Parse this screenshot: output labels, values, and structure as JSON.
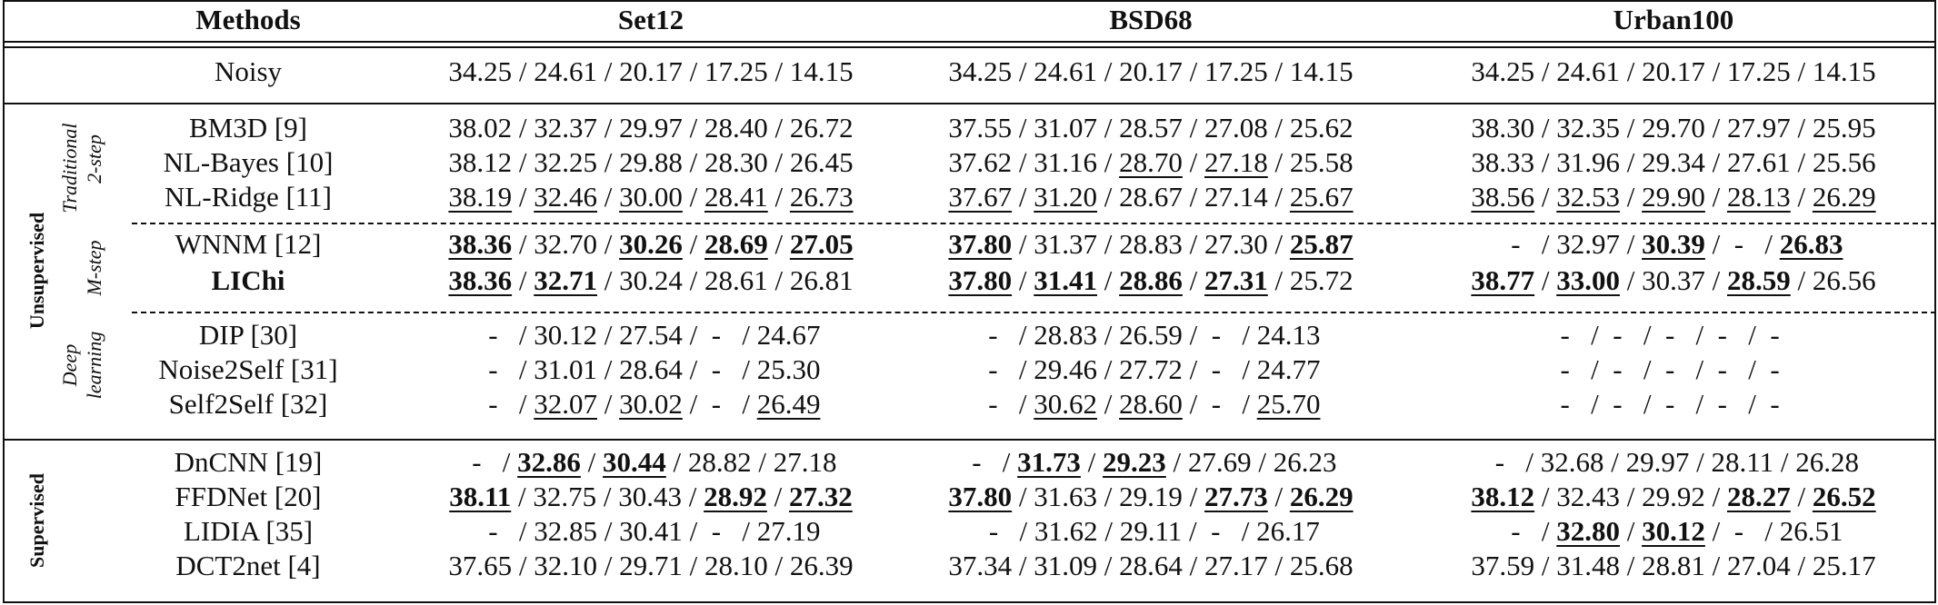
{
  "headers": [
    "Methods",
    "Set12",
    "BSD68",
    "Urban100"
  ],
  "groups": {
    "unsupervised": "Unsupervised",
    "supervised": "Supervised",
    "traditional_2step": [
      "Traditional",
      "2-step"
    ],
    "traditional_mstep": "M-step",
    "deep_learning": [
      "Deep",
      "learning"
    ]
  },
  "rows": [
    {
      "method": "Noisy",
      "bold": false,
      "cells": [
        [
          [
            "34.25",
            ""
          ],
          [
            "24.61",
            ""
          ],
          [
            "20.17",
            ""
          ],
          [
            "17.25",
            ""
          ],
          [
            "14.15",
            ""
          ]
        ],
        [
          [
            "34.25",
            ""
          ],
          [
            "24.61",
            ""
          ],
          [
            "20.17",
            ""
          ],
          [
            "17.25",
            ""
          ],
          [
            "14.15",
            ""
          ]
        ],
        [
          [
            "34.25",
            ""
          ],
          [
            "24.61",
            ""
          ],
          [
            "20.17",
            ""
          ],
          [
            "17.25",
            ""
          ],
          [
            "14.15",
            ""
          ]
        ]
      ]
    },
    {
      "method": "BM3D [9]",
      "bold": false,
      "cells": [
        [
          [
            "38.02",
            ""
          ],
          [
            "32.37",
            ""
          ],
          [
            "29.97",
            ""
          ],
          [
            "28.40",
            ""
          ],
          [
            "26.72",
            ""
          ]
        ],
        [
          [
            "37.55",
            ""
          ],
          [
            "31.07",
            ""
          ],
          [
            "28.57",
            ""
          ],
          [
            "27.08",
            ""
          ],
          [
            "25.62",
            ""
          ]
        ],
        [
          [
            "38.30",
            ""
          ],
          [
            "32.35",
            ""
          ],
          [
            "29.70",
            ""
          ],
          [
            "27.97",
            ""
          ],
          [
            "25.95",
            ""
          ]
        ]
      ]
    },
    {
      "method": "NL-Bayes [10]",
      "bold": false,
      "cells": [
        [
          [
            "38.12",
            ""
          ],
          [
            "32.25",
            ""
          ],
          [
            "29.88",
            ""
          ],
          [
            "28.30",
            ""
          ],
          [
            "26.45",
            ""
          ]
        ],
        [
          [
            "37.62",
            ""
          ],
          [
            "31.16",
            ""
          ],
          [
            "28.70",
            "u"
          ],
          [
            "27.18",
            "u"
          ],
          [
            "25.58",
            ""
          ]
        ],
        [
          [
            "38.33",
            ""
          ],
          [
            "31.96",
            ""
          ],
          [
            "29.34",
            ""
          ],
          [
            "27.61",
            ""
          ],
          [
            "25.56",
            ""
          ]
        ]
      ]
    },
    {
      "method": "NL-Ridge [11]",
      "bold": false,
      "cells": [
        [
          [
            "38.19",
            "u"
          ],
          [
            "32.46",
            "u"
          ],
          [
            "30.00",
            "u"
          ],
          [
            "28.41",
            "u"
          ],
          [
            "26.73",
            "u"
          ]
        ],
        [
          [
            "37.67",
            "u"
          ],
          [
            "31.20",
            "u"
          ],
          [
            "28.67",
            ""
          ],
          [
            "27.14",
            ""
          ],
          [
            "25.67",
            "u"
          ]
        ],
        [
          [
            "38.56",
            "u"
          ],
          [
            "32.53",
            "u"
          ],
          [
            "29.90",
            "u"
          ],
          [
            "28.13",
            "u"
          ],
          [
            "26.29",
            "u"
          ]
        ]
      ]
    },
    {
      "method": "WNNM [12]",
      "bold": false,
      "cells": [
        [
          [
            "38.36",
            "bu"
          ],
          [
            "32.70",
            ""
          ],
          [
            "30.26",
            "bu"
          ],
          [
            "28.69",
            "bu"
          ],
          [
            "27.05",
            "bu"
          ]
        ],
        [
          [
            "37.80",
            "bu"
          ],
          [
            "31.37",
            ""
          ],
          [
            "28.83",
            ""
          ],
          [
            "27.30",
            ""
          ],
          [
            "25.87",
            "bu"
          ]
        ],
        [
          [
            "-",
            ""
          ],
          [
            "32.97",
            ""
          ],
          [
            "30.39",
            "bu"
          ],
          [
            "-",
            ""
          ],
          [
            "26.83",
            "bu"
          ]
        ]
      ]
    },
    {
      "method": "LIChi",
      "bold": true,
      "cells": [
        [
          [
            "38.36",
            "bu"
          ],
          [
            "32.71",
            "bu"
          ],
          [
            "30.24",
            ""
          ],
          [
            "28.61",
            ""
          ],
          [
            "26.81",
            ""
          ]
        ],
        [
          [
            "37.80",
            "bu"
          ],
          [
            "31.41",
            "bu"
          ],
          [
            "28.86",
            "bu"
          ],
          [
            "27.31",
            "bu"
          ],
          [
            "25.72",
            ""
          ]
        ],
        [
          [
            "38.77",
            "bu"
          ],
          [
            "33.00",
            "bu"
          ],
          [
            "30.37",
            ""
          ],
          [
            "28.59",
            "bu"
          ],
          [
            "26.56",
            ""
          ]
        ]
      ]
    },
    {
      "method": "DIP [30]",
      "bold": false,
      "cells": [
        [
          [
            "-",
            ""
          ],
          [
            "30.12",
            ""
          ],
          [
            "27.54",
            ""
          ],
          [
            "-",
            ""
          ],
          [
            "24.67",
            ""
          ]
        ],
        [
          [
            "-",
            ""
          ],
          [
            "28.83",
            ""
          ],
          [
            "26.59",
            ""
          ],
          [
            "-",
            ""
          ],
          [
            "24.13",
            ""
          ]
        ],
        [
          [
            "-",
            ""
          ],
          [
            "-",
            ""
          ],
          [
            "-",
            ""
          ],
          [
            "-",
            ""
          ],
          [
            "-",
            ""
          ]
        ]
      ]
    },
    {
      "method": "Noise2Self [31]",
      "bold": false,
      "cells": [
        [
          [
            "-",
            ""
          ],
          [
            "31.01",
            ""
          ],
          [
            "28.64",
            ""
          ],
          [
            "-",
            ""
          ],
          [
            "25.30",
            ""
          ]
        ],
        [
          [
            "-",
            ""
          ],
          [
            "29.46",
            ""
          ],
          [
            "27.72",
            ""
          ],
          [
            "-",
            ""
          ],
          [
            "24.77",
            ""
          ]
        ],
        [
          [
            "-",
            ""
          ],
          [
            "-",
            ""
          ],
          [
            "-",
            ""
          ],
          [
            "-",
            ""
          ],
          [
            "-",
            ""
          ]
        ]
      ]
    },
    {
      "method": "Self2Self [32]",
      "bold": false,
      "cells": [
        [
          [
            "-",
            ""
          ],
          [
            "32.07",
            "u"
          ],
          [
            "30.02",
            "u"
          ],
          [
            "-",
            ""
          ],
          [
            "26.49",
            "u"
          ]
        ],
        [
          [
            "-",
            ""
          ],
          [
            "30.62",
            "u"
          ],
          [
            "28.60",
            "u"
          ],
          [
            "-",
            ""
          ],
          [
            "25.70",
            "u"
          ]
        ],
        [
          [
            "-",
            ""
          ],
          [
            "-",
            ""
          ],
          [
            "-",
            ""
          ],
          [
            "-",
            ""
          ],
          [
            "-",
            ""
          ]
        ]
      ]
    },
    {
      "method": "DnCNN [19]",
      "bold": false,
      "cells": [
        [
          [
            "-",
            ""
          ],
          [
            "32.86",
            "bu"
          ],
          [
            "30.44",
            "bu"
          ],
          [
            "28.82",
            ""
          ],
          [
            "27.18",
            ""
          ]
        ],
        [
          [
            "-",
            ""
          ],
          [
            "31.73",
            "bu"
          ],
          [
            "29.23",
            "bu"
          ],
          [
            "27.69",
            ""
          ],
          [
            "26.23",
            ""
          ]
        ],
        [
          [
            "-",
            ""
          ],
          [
            "32.68",
            ""
          ],
          [
            "29.97",
            ""
          ],
          [
            "28.11",
            ""
          ],
          [
            "26.28",
            ""
          ]
        ]
      ]
    },
    {
      "method": "FFDNet [20]",
      "bold": false,
      "cells": [
        [
          [
            "38.11",
            "bu"
          ],
          [
            "32.75",
            ""
          ],
          [
            "30.43",
            ""
          ],
          [
            "28.92",
            "bu"
          ],
          [
            "27.32",
            "bu"
          ]
        ],
        [
          [
            "37.80",
            "bu"
          ],
          [
            "31.63",
            ""
          ],
          [
            "29.19",
            ""
          ],
          [
            "27.73",
            "bu"
          ],
          [
            "26.29",
            "bu"
          ]
        ],
        [
          [
            "38.12",
            "bu"
          ],
          [
            "32.43",
            ""
          ],
          [
            "29.92",
            ""
          ],
          [
            "28.27",
            "bu"
          ],
          [
            "26.52",
            "bu"
          ]
        ]
      ]
    },
    {
      "method": "LIDIA [35]",
      "bold": false,
      "cells": [
        [
          [
            "-",
            ""
          ],
          [
            "32.85",
            ""
          ],
          [
            "30.41",
            ""
          ],
          [
            "-",
            ""
          ],
          [
            "27.19",
            ""
          ]
        ],
        [
          [
            "-",
            ""
          ],
          [
            "31.62",
            ""
          ],
          [
            "29.11",
            ""
          ],
          [
            "-",
            ""
          ],
          [
            "26.17",
            ""
          ]
        ],
        [
          [
            "-",
            ""
          ],
          [
            "32.80",
            "bu"
          ],
          [
            "30.12",
            "bu"
          ],
          [
            "-",
            ""
          ],
          [
            "26.51",
            ""
          ]
        ]
      ]
    },
    {
      "method": "DCT2net [4]",
      "bold": false,
      "cells": [
        [
          [
            "37.65",
            ""
          ],
          [
            "32.10",
            ""
          ],
          [
            "29.71",
            ""
          ],
          [
            "28.10",
            ""
          ],
          [
            "26.39",
            ""
          ]
        ],
        [
          [
            "37.34",
            ""
          ],
          [
            "31.09",
            ""
          ],
          [
            "28.64",
            ""
          ],
          [
            "27.17",
            ""
          ],
          [
            "25.68",
            ""
          ]
        ],
        [
          [
            "37.59",
            ""
          ],
          [
            "31.48",
            ""
          ],
          [
            "28.81",
            ""
          ],
          [
            "27.04",
            ""
          ],
          [
            "25.17",
            ""
          ]
        ]
      ]
    }
  ]
}
